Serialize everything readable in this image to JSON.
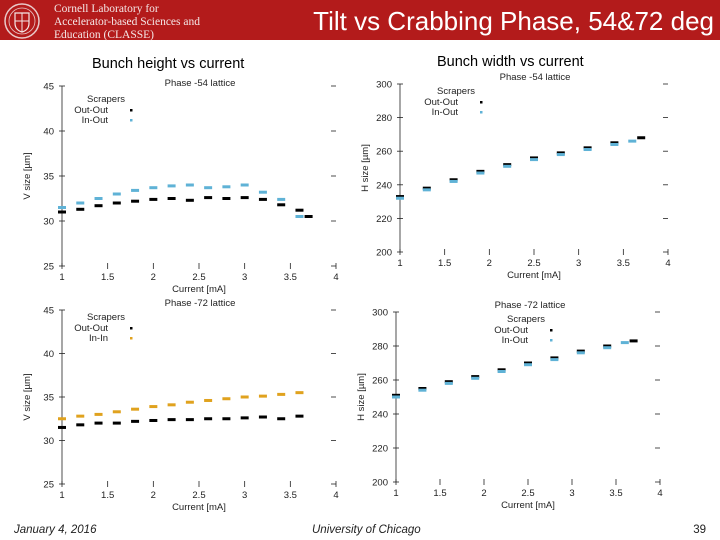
{
  "header": {
    "logo_lines": [
      "Cornell Laboratory for",
      "Accelerator-based Sciences and",
      "Education (CLASSE)"
    ],
    "title": "Tilt vs Crabbing Phase, 54&72 deg",
    "brand_color": "#b31b1b"
  },
  "left_panel_title": "Bunch height vs current",
  "right_panel_title": "Bunch width vs current",
  "footer": {
    "date": "January 4, 2016",
    "institution": "University of Chicago",
    "page": "39"
  },
  "chart_data": [
    {
      "type": "scatter",
      "title": "Phase -54 lattice",
      "xlabel": "Current [mA]",
      "ylabel": "V size [µm]",
      "xlim": [
        1,
        4
      ],
      "ylim": [
        25,
        45
      ],
      "xticks": [
        "1",
        "1.5",
        "2",
        "2.5",
        "3",
        "3.5",
        "4"
      ],
      "yticks": [
        "25",
        "30",
        "35",
        "40",
        "45"
      ],
      "legend_title": "Scrapers",
      "legend_position": "top-left",
      "series": [
        {
          "name": "Out-Out",
          "color": "#000000",
          "x": [
            1.0,
            1.2,
            1.4,
            1.6,
            1.8,
            2.0,
            2.2,
            2.4,
            2.6,
            2.8,
            3.0,
            3.2,
            3.4,
            3.6,
            3.7
          ],
          "y": [
            31,
            31.3,
            31.7,
            32,
            32.2,
            32.4,
            32.5,
            32.3,
            32.6,
            32.5,
            32.6,
            32.4,
            31.8,
            31.2,
            30.5
          ]
        },
        {
          "name": "In-Out",
          "color": "#5fb2d6",
          "x": [
            1.0,
            1.2,
            1.4,
            1.6,
            1.8,
            2.0,
            2.2,
            2.4,
            2.6,
            2.8,
            3.0,
            3.2,
            3.4,
            3.6
          ],
          "y": [
            31.5,
            32,
            32.5,
            33,
            33.4,
            33.7,
            33.9,
            34,
            33.7,
            33.8,
            34,
            33.2,
            32.4,
            30.5
          ]
        }
      ]
    },
    {
      "type": "scatter",
      "title": "Phase -54  lattice",
      "xlabel": "Current [mA]",
      "ylabel": "H size [µm]",
      "xlim": [
        1,
        4
      ],
      "ylim": [
        200,
        300
      ],
      "xticks": [
        "1",
        "1.5",
        "2",
        "2.5",
        "3",
        "3.5",
        "4"
      ],
      "yticks": [
        "200",
        "220",
        "240",
        "260",
        "280",
        "300"
      ],
      "legend_title": "Scrapers",
      "legend_position": "top-right",
      "series": [
        {
          "name": "Out-Out",
          "color": "#000000",
          "x": [
            1.0,
            1.3,
            1.6,
            1.9,
            2.2,
            2.5,
            2.8,
            3.1,
            3.4,
            3.7
          ],
          "y": [
            233,
            238,
            243,
            248,
            252,
            256,
            259,
            262,
            265,
            268
          ]
        },
        {
          "name": "In-Out",
          "color": "#5fb2d6",
          "x": [
            1.0,
            1.3,
            1.6,
            1.9,
            2.2,
            2.5,
            2.8,
            3.1,
            3.4,
            3.6
          ],
          "y": [
            232,
            237,
            242,
            247,
            251,
            255,
            258,
            261,
            264,
            266
          ]
        }
      ]
    },
    {
      "type": "scatter",
      "title": "Phase -72 lattice",
      "xlabel": "Current [mA]",
      "ylabel": "V size [µm]",
      "xlim": [
        1,
        4
      ],
      "ylim": [
        25,
        45
      ],
      "xticks": [
        "1",
        "1.5",
        "2",
        "2.5",
        "3",
        "3.5",
        "4"
      ],
      "yticks": [
        "25",
        "30",
        "35",
        "40",
        "45"
      ],
      "legend_title": "Scrapers",
      "legend_position": "top-left",
      "series": [
        {
          "name": "Out-Out",
          "color": "#000000",
          "x": [
            1.0,
            1.2,
            1.4,
            1.6,
            1.8,
            2.0,
            2.2,
            2.4,
            2.6,
            2.8,
            3.0,
            3.2,
            3.4,
            3.6
          ],
          "y": [
            31.5,
            31.8,
            32,
            32,
            32.2,
            32.3,
            32.4,
            32.4,
            32.5,
            32.5,
            32.6,
            32.7,
            32.5,
            32.8
          ]
        },
        {
          "name": "In-In",
          "color": "#e0a21e",
          "x": [
            1.0,
            1.2,
            1.4,
            1.6,
            1.8,
            2.0,
            2.2,
            2.4,
            2.6,
            2.8,
            3.0,
            3.2,
            3.4,
            3.6
          ],
          "y": [
            32.5,
            32.8,
            33,
            33.3,
            33.6,
            33.9,
            34.1,
            34.4,
            34.6,
            34.8,
            35,
            35.1,
            35.3,
            35.5
          ]
        }
      ]
    },
    {
      "type": "scatter",
      "title": "Phase -72  lattice",
      "xlabel": "Current [mA]",
      "ylabel": "H size [µm]",
      "xlim": [
        1,
        4
      ],
      "ylim": [
        200,
        300
      ],
      "xticks": [
        "1",
        "1.5",
        "2",
        "2.5",
        "3",
        "3.5",
        "4"
      ],
      "yticks": [
        "200",
        "220",
        "240",
        "260",
        "280",
        "300"
      ],
      "legend_title": "Scrapers",
      "legend_position": "top-center",
      "series": [
        {
          "name": "Out-Out",
          "color": "#000000",
          "x": [
            1.0,
            1.3,
            1.6,
            1.9,
            2.2,
            2.5,
            2.8,
            3.1,
            3.4,
            3.7
          ],
          "y": [
            251,
            255,
            259,
            262,
            266,
            270,
            273,
            277,
            280,
            283
          ]
        },
        {
          "name": "In-Out",
          "color": "#5fb2d6",
          "x": [
            1.0,
            1.3,
            1.6,
            1.9,
            2.2,
            2.5,
            2.8,
            3.1,
            3.4,
            3.6
          ],
          "y": [
            250,
            254,
            258,
            261,
            265,
            269,
            272,
            276,
            279,
            282
          ]
        }
      ]
    }
  ]
}
